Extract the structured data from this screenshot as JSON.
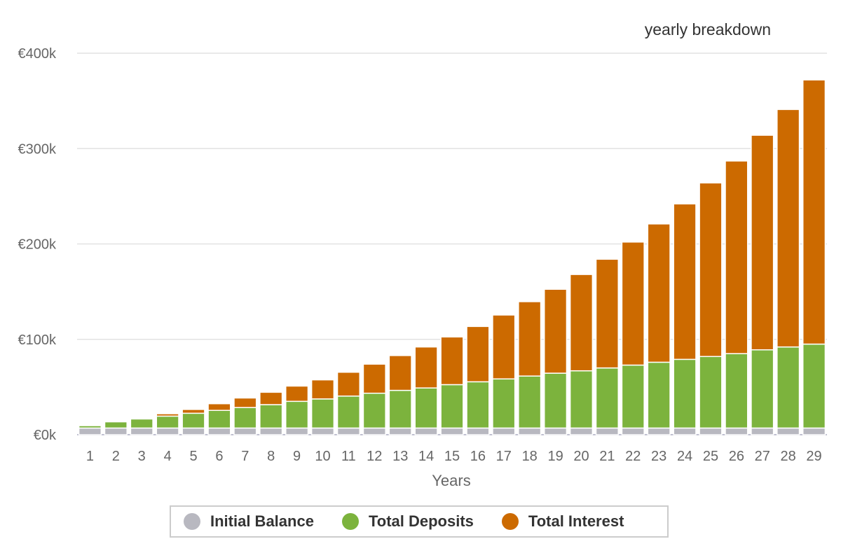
{
  "chart_data": {
    "type": "bar",
    "stacked": true,
    "title": "",
    "subtitle": "yearly breakdown",
    "xlabel": "Years",
    "ylabel": "",
    "ylim": [
      0,
      400000
    ],
    "ytick_labels": [
      "€0k",
      "€100k",
      "€200k",
      "€300k",
      "€400k"
    ],
    "grid": true,
    "legend_position": "bottom-center",
    "categories": [
      "1",
      "2",
      "3",
      "4",
      "5",
      "6",
      "7",
      "8",
      "9",
      "10",
      "11",
      "12",
      "13",
      "14",
      "15",
      "16",
      "17",
      "18",
      "19",
      "20",
      "21",
      "22",
      "23",
      "24",
      "25",
      "26",
      "27",
      "28",
      "29"
    ],
    "series": [
      {
        "name": "Initial Balance",
        "color": "#b8b8c0",
        "values": [
          7000,
          7000,
          7000,
          7000,
          7000,
          7000,
          7000,
          7000,
          7000,
          7000,
          7000,
          7000,
          7000,
          7000,
          7000,
          7000,
          7000,
          7000,
          7000,
          7000,
          7000,
          7000,
          7000,
          7000,
          7000,
          7000,
          7000,
          7000,
          7000
        ]
      },
      {
        "name": "Total Deposits",
        "color": "#7cb33d",
        "values": [
          2500,
          6500,
          9500,
          12500,
          15500,
          18500,
          21500,
          24500,
          28000,
          30500,
          33500,
          36500,
          39500,
          42000,
          45500,
          48500,
          51500,
          54500,
          57500,
          60000,
          63000,
          66000,
          69000,
          72000,
          75000,
          78000,
          82000,
          85000,
          88000
        ]
      },
      {
        "name": "Total Interest",
        "color": "#cc6a00",
        "values": [
          0,
          0,
          0,
          2500,
          4000,
          7000,
          10000,
          13000,
          16000,
          20000,
          25000,
          30500,
          36500,
          43000,
          50000,
          58000,
          67000,
          78000,
          88000,
          101000,
          114000,
          129000,
          145000,
          163000,
          182000,
          202000,
          225000,
          249000,
          277000
        ]
      }
    ]
  }
}
